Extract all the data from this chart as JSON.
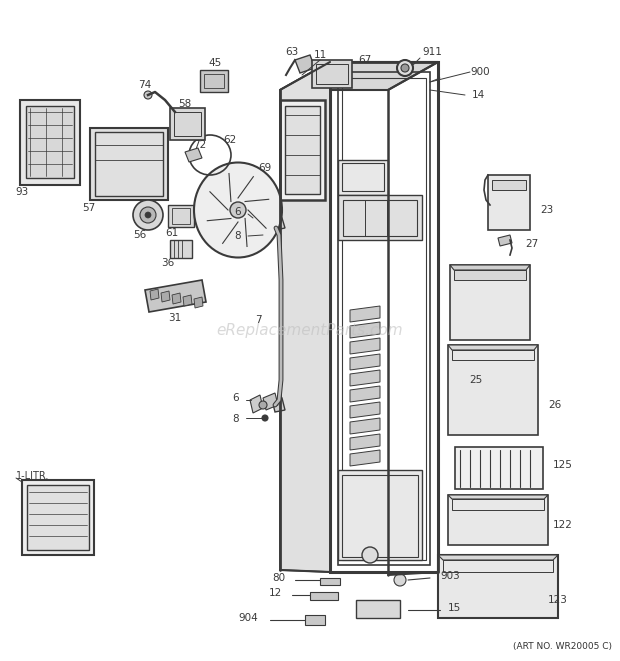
{
  "bg_color": "#ffffff",
  "art_no": "(ART NO. WR20005 C)",
  "watermark": "eReplacementParts.com",
  "color_dark": "#3a3a3a",
  "color_mid": "#666666",
  "color_light": "#999999"
}
